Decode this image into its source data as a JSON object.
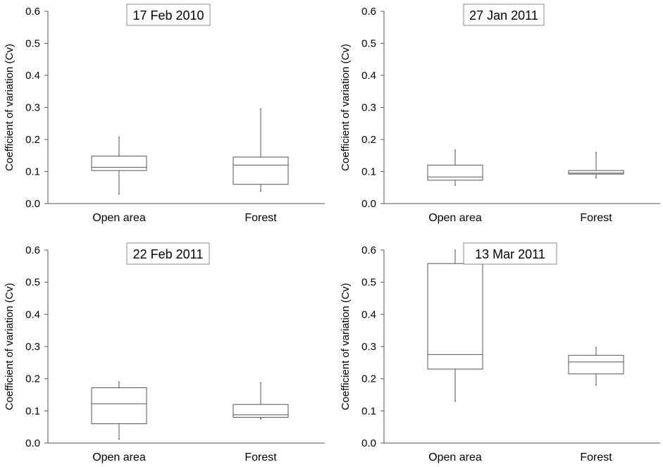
{
  "chart_data": [
    {
      "type": "box",
      "title": "17 Feb 2010",
      "ylabel": "Coefficient of variation (Cv)",
      "ylim": [
        0,
        0.6
      ],
      "yticks": [
        "0.0",
        "0.1",
        "0.2",
        "0.3",
        "0.4",
        "0.5",
        "0.6"
      ],
      "categories": [
        "Open area",
        "Forest"
      ],
      "boxes": [
        {
          "category": "Open area",
          "min": 0.03,
          "q1": 0.103,
          "median": 0.113,
          "q3": 0.148,
          "max": 0.207
        },
        {
          "category": "Forest",
          "min": 0.038,
          "q1": 0.06,
          "median": 0.12,
          "q3": 0.145,
          "max": 0.295
        }
      ]
    },
    {
      "type": "box",
      "title": "27 Jan 2011",
      "ylabel": "Coefficient of variation (Cv)",
      "ylim": [
        0,
        0.6
      ],
      "yticks": [
        "0.0",
        "0.1",
        "0.2",
        "0.3",
        "0.4",
        "0.5",
        "0.6"
      ],
      "categories": [
        "Open area",
        "Forest"
      ],
      "boxes": [
        {
          "category": "Open area",
          "min": 0.057,
          "q1": 0.073,
          "median": 0.083,
          "q3": 0.12,
          "max": 0.167
        },
        {
          "category": "Forest",
          "min": 0.08,
          "q1": 0.092,
          "median": 0.095,
          "q3": 0.103,
          "max": 0.16
        }
      ]
    },
    {
      "type": "box",
      "title": "22 Feb 2011",
      "ylabel": "Coefficient of variation (Cv)",
      "ylim": [
        0,
        0.6
      ],
      "yticks": [
        "0.0",
        "0.1",
        "0.2",
        "0.3",
        "0.4",
        "0.5",
        "0.6"
      ],
      "categories": [
        "Open area",
        "Forest"
      ],
      "boxes": [
        {
          "category": "Open area",
          "min": 0.012,
          "q1": 0.06,
          "median": 0.122,
          "q3": 0.172,
          "max": 0.19
        },
        {
          "category": "Forest",
          "min": 0.075,
          "q1": 0.08,
          "median": 0.088,
          "q3": 0.12,
          "max": 0.187
        }
      ]
    },
    {
      "type": "box",
      "title": "13 Mar 2011",
      "ylabel": "Coefficient of variation (Cv)",
      "ylim": [
        0,
        0.6
      ],
      "yticks": [
        "0.0",
        "0.1",
        "0.2",
        "0.3",
        "0.4",
        "0.5",
        "0.6"
      ],
      "categories": [
        "Open area",
        "Forest"
      ],
      "boxes": [
        {
          "category": "Open area",
          "min": 0.13,
          "q1": 0.23,
          "median": 0.275,
          "q3": 0.558,
          "max": 0.6
        },
        {
          "category": "Forest",
          "min": 0.18,
          "q1": 0.215,
          "median": 0.252,
          "q3": 0.273,
          "max": 0.297
        }
      ]
    }
  ]
}
